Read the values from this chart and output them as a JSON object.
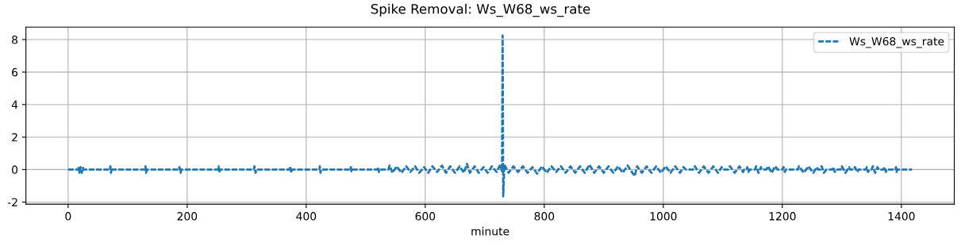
{
  "chart_data": {
    "type": "line",
    "title": "Spike Removal: Ws_W68_ws_rate",
    "xlabel": "minute",
    "xlim": [
      -70.9,
      1488.9
    ],
    "xticks": [
      0,
      200,
      400,
      600,
      800,
      1000,
      1200,
      1400
    ],
    "ylim": [
      -2.13,
      8.77
    ],
    "yticks": [
      {
        "value": -2,
        "label": "-2"
      },
      0,
      2,
      4,
      6,
      8
    ],
    "grid": true,
    "legend": "top right",
    "line_style": "dashed",
    "series": [
      {
        "name": "Ws_W68_ws_rate",
        "color": "#1f77b4",
        "x": [
          0,
          17,
          18,
          19,
          21,
          23,
          25,
          26,
          70,
          71,
          72,
          73,
          74,
          129,
          130,
          131,
          132,
          186,
          187,
          189,
          190,
          252,
          253,
          254,
          255,
          312,
          313,
          315,
          316,
          372,
          373,
          375,
          376,
          422,
          423,
          424,
          425,
          474,
          475,
          476,
          477,
          520,
          521,
          522,
          523,
          538,
          540,
          545,
          552,
          560,
          568,
          575,
          583,
          590,
          598,
          605,
          612,
          620,
          628,
          635,
          642,
          650,
          658,
          665,
          670,
          675,
          683,
          690,
          698,
          705,
          712,
          720,
          726,
          729,
          730,
          731,
          733,
          740,
          748,
          756,
          764,
          772,
          780,
          788,
          796,
          804,
          812,
          820,
          828,
          836,
          844,
          852,
          860,
          868,
          876,
          884,
          892,
          900,
          908,
          916,
          924,
          932,
          940,
          948,
          952,
          956,
          964,
          972,
          980,
          988,
          996,
          1004,
          1012,
          1020,
          1028,
          1034,
          1038,
          1050,
          1053,
          1060,
          1068,
          1076,
          1084,
          1092,
          1098,
          1100,
          1109,
          1112,
          1120,
          1128,
          1134,
          1136,
          1140,
          1141,
          1143,
          1145,
          1154,
          1156,
          1160,
          1164,
          1166,
          1173,
          1176,
          1182,
          1188,
          1192,
          1200,
          1202,
          1204,
          1206,
          1226,
          1228,
          1236,
          1244,
          1252,
          1258,
          1260,
          1264,
          1266,
          1270,
          1274,
          1284,
          1286,
          1288,
          1290,
          1298,
          1300,
          1306,
          1312,
          1314,
          1320,
          1322,
          1326,
          1328,
          1340,
          1342,
          1344,
          1346,
          1350,
          1352,
          1356,
          1360,
          1362,
          1370,
          1372,
          1374,
          1376,
          1390,
          1391,
          1392,
          1393,
          1418
        ],
        "values": [
          0,
          0,
          0.2,
          -0.2,
          0.15,
          -0.2,
          0.1,
          0,
          0,
          0.2,
          -0.2,
          0.1,
          0,
          0,
          0.2,
          -0.2,
          0,
          0,
          0.15,
          -0.2,
          0,
          0,
          0.2,
          -0.2,
          0,
          0,
          0.2,
          -0.2,
          0,
          0,
          0.2,
          -0.2,
          0,
          0,
          0.2,
          -0.2,
          0,
          0,
          0.15,
          -0.1,
          0,
          0,
          0.15,
          -0.15,
          0,
          0,
          0.25,
          -0.2,
          0.2,
          -0.2,
          0.2,
          -0.15,
          0.2,
          -0.2,
          0.15,
          -0.2,
          0.2,
          -0.15,
          0.25,
          -0.2,
          0.2,
          -0.2,
          0.2,
          -0.2,
          0.35,
          -0.2,
          0.2,
          -0.2,
          0.15,
          -0.2,
          0.2,
          -0.15,
          0.3,
          -0.1,
          8.25,
          -1.65,
          0.3,
          -0.2,
          0.2,
          -0.15,
          0.2,
          -0.2,
          0.15,
          -0.25,
          0.2,
          -0.2,
          0.2,
          -0.15,
          0.2,
          -0.2,
          0.2,
          -0.2,
          0.2,
          -0.2,
          0.3,
          -0.2,
          0.2,
          -0.2,
          0.2,
          -0.2,
          0.2,
          -0.2,
          0.25,
          -0.2,
          -0.4,
          0.2,
          -0.2,
          0.2,
          -0.2,
          0.2,
          -0.2,
          0.2,
          -0.2,
          0.2,
          -0.2,
          0.15,
          0,
          0,
          0.2,
          -0.2,
          0.2,
          -0.2,
          0.2,
          -0.2,
          0.15,
          0,
          0,
          0.2,
          -0.2,
          0.2,
          -0.15,
          0,
          0,
          0.15,
          -0.15,
          0,
          0,
          0.2,
          -0.2,
          0.15,
          0,
          0,
          0.2,
          -0.2,
          0.2,
          0,
          0,
          0.15,
          -0.15,
          0,
          0,
          0.2,
          -0.2,
          0.2,
          -0.2,
          0.15,
          0,
          0,
          0.2,
          -0.2,
          0,
          0,
          0.15,
          -0.15,
          0,
          0,
          0.2,
          -0.2,
          0.15,
          0,
          0,
          0.15,
          -0.15,
          0,
          0,
          0.15,
          -0.15,
          0,
          0,
          0.2,
          -0.2,
          0.15,
          0,
          0,
          0.15,
          -0.15,
          0,
          0,
          0.15,
          -0.15,
          0,
          0
        ]
      }
    ]
  }
}
